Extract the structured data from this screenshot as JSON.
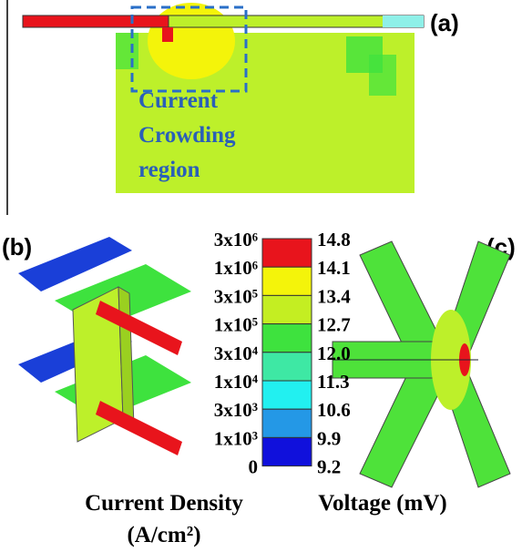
{
  "panel_a": {
    "label": "(a)",
    "annotation": [
      "Current",
      "Crowding",
      "region"
    ]
  },
  "panel_b": {
    "label": "(b)"
  },
  "panel_c": {
    "label": "(c)"
  },
  "legend": {
    "current_labels": [
      "3x10⁶",
      "1x10⁶",
      "3x10⁵",
      "1x10⁵",
      "3x10⁴",
      "1x10⁴",
      "3x10³",
      "1x10³",
      "0"
    ],
    "voltage_labels": [
      "14.8",
      "14.1",
      "13.4",
      "12.7",
      "12.0",
      "11.3",
      "10.6",
      "9.9",
      "9.2"
    ],
    "colors": [
      "#e8141c",
      "#f4f40a",
      "#c4ee22",
      "#3ee23e",
      "#3ee8a4",
      "#22f0f0",
      "#2498e6",
      "#1010dc"
    ],
    "current_title": "Current Density",
    "current_unit": "(A/cm²)",
    "voltage_title": "Voltage (mV)"
  }
}
